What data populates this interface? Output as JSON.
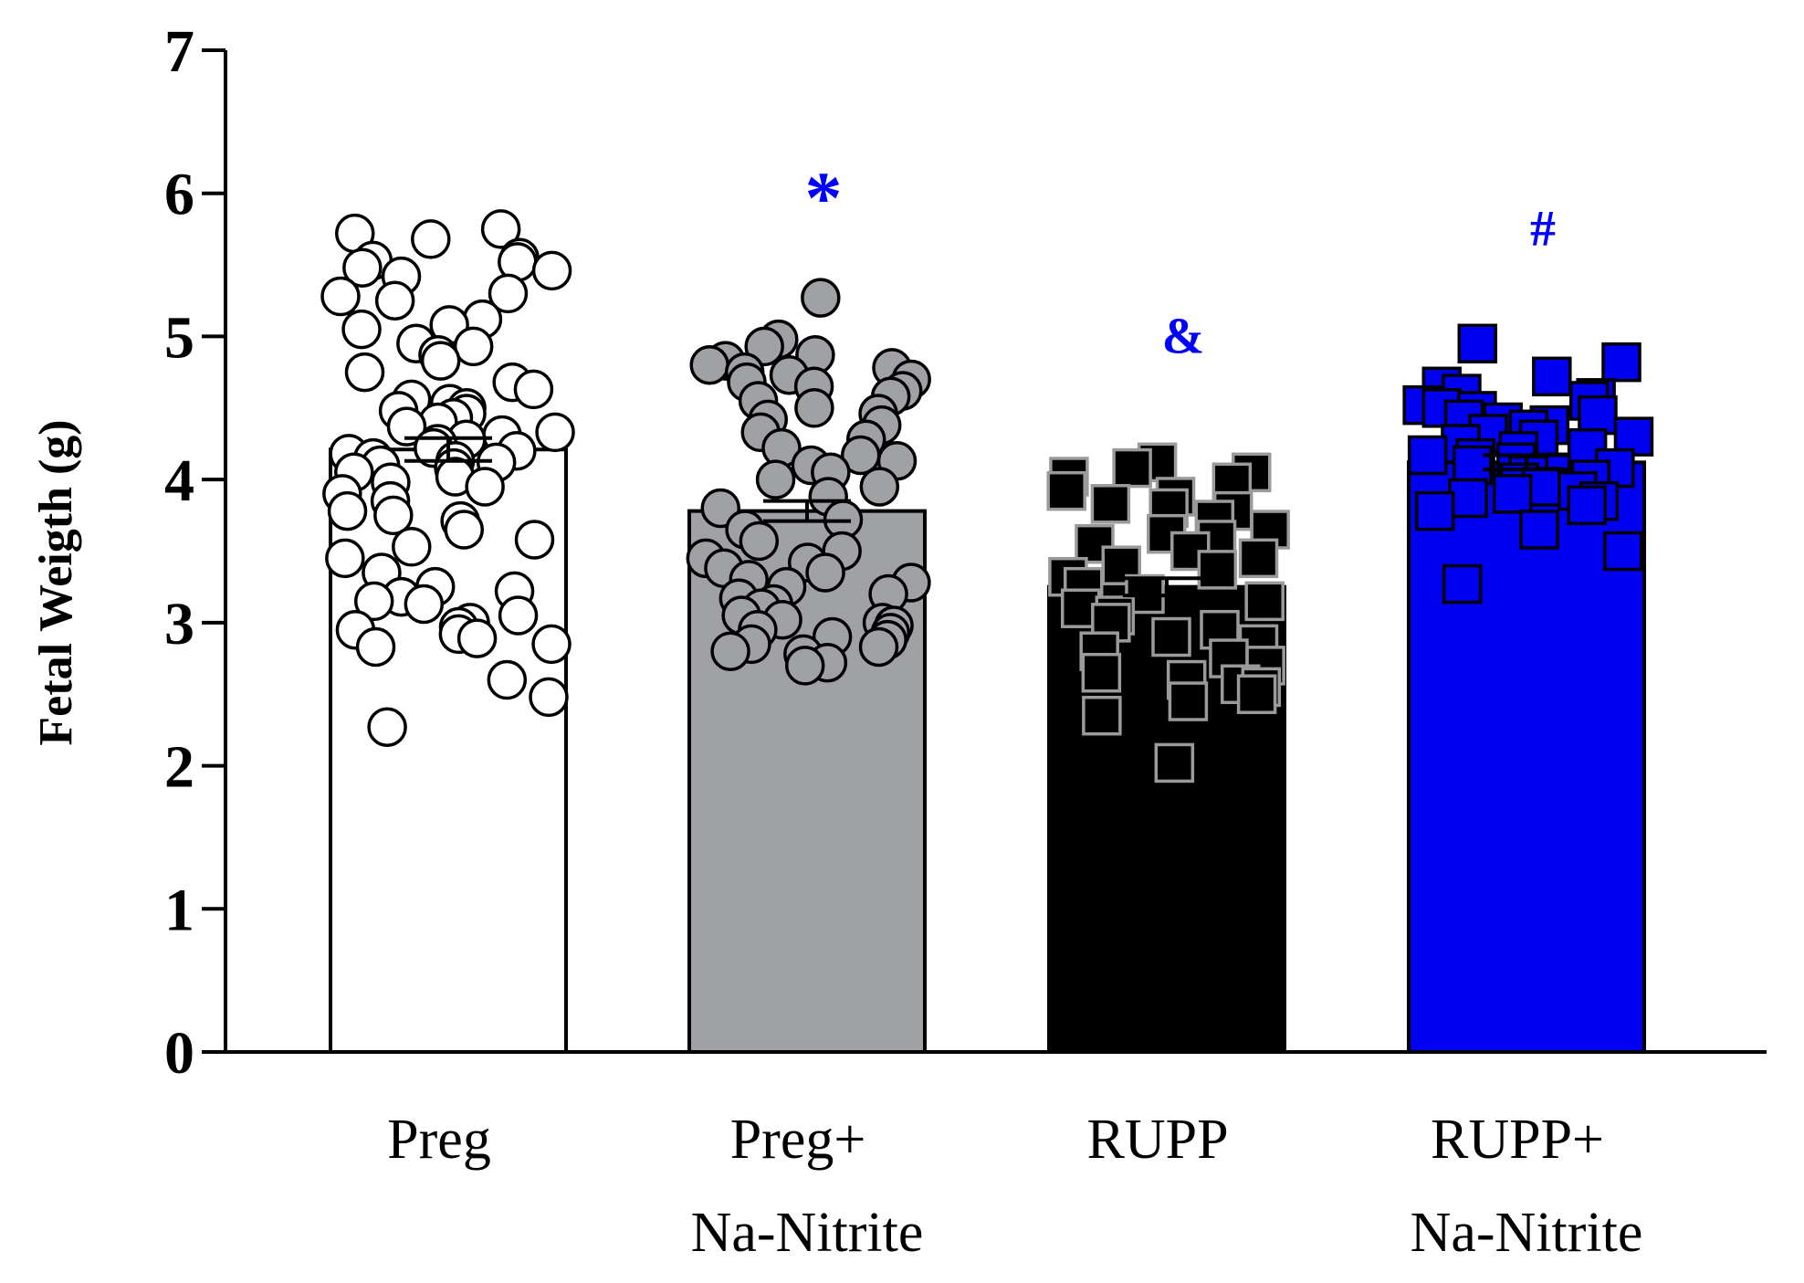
{
  "chart_data": {
    "type": "bar",
    "ylabel": "Fetal Weigth (g)",
    "xlabel": "",
    "ylim": [
      0,
      7
    ],
    "yticks": [
      "0",
      "1",
      "2",
      "3",
      "4",
      "5",
      "6",
      "7"
    ],
    "grid": false,
    "categories": [
      {
        "line1": "Preg",
        "line2": ""
      },
      {
        "line1": "Preg+",
        "line2": "Na-Nitrite"
      },
      {
        "line1": "RUPP",
        "line2": ""
      },
      {
        "line1": "RUPP+",
        "line2": "Na-Nitrite"
      }
    ],
    "values": [
      4.21,
      3.78,
      3.25,
      4.12
    ],
    "sem": [
      0.08,
      0.07,
      0.06,
      0.05
    ],
    "bar_fills": [
      "#ffffff",
      "#a0a1a5",
      "#000000",
      "#0000f0"
    ],
    "marker_shapes": [
      "circle",
      "circle",
      "square",
      "square"
    ],
    "marker_fills": [
      "#ffffff",
      "#a0a1a5",
      "#000000",
      "#0000f0"
    ],
    "marker_strokes": [
      "#000000",
      "#000000",
      "#9a9a9a",
      "#000000"
    ],
    "significance": [
      "",
      "*",
      "&",
      "#"
    ],
    "significance_values": [
      null,
      6.1,
      5.0,
      5.75
    ],
    "significance_color": "#0000ff",
    "points": [
      [
        5.75,
        5.72,
        5.68,
        5.55,
        5.53,
        5.52,
        5.48,
        5.46,
        5.42,
        5.3,
        5.28,
        5.25,
        5.12,
        5.08,
        5.05,
        4.95,
        4.93,
        4.87,
        4.83,
        4.75,
        4.68,
        4.63,
        4.56,
        4.53,
        4.5,
        4.48,
        4.46,
        4.43,
        4.4,
        4.37,
        4.33,
        4.31,
        4.28,
        4.25,
        4.22,
        4.2,
        4.18,
        4.15,
        4.13,
        4.12,
        4.1,
        4.08,
        4.05,
        4.02,
        3.98,
        3.95,
        3.9,
        3.85,
        3.78,
        3.75,
        3.71,
        3.65,
        3.58,
        3.53,
        3.45,
        3.35,
        3.25,
        3.22,
        3.18,
        3.15,
        3.13,
        3.05,
        3.0,
        2.97,
        2.95,
        2.92,
        2.89,
        2.85,
        2.83,
        2.6,
        2.48,
        2.27
      ],
      [
        5.27,
        4.98,
        4.93,
        4.87,
        4.83,
        4.8,
        4.78,
        4.75,
        4.73,
        4.7,
        4.68,
        4.65,
        4.62,
        4.58,
        4.55,
        4.5,
        4.46,
        4.42,
        4.38,
        4.33,
        4.28,
        4.22,
        4.17,
        4.13,
        4.1,
        4.05,
        4.0,
        3.95,
        3.88,
        3.8,
        3.72,
        3.65,
        3.57,
        3.5,
        3.45,
        3.42,
        3.38,
        3.35,
        3.3,
        3.28,
        3.25,
        3.2,
        3.17,
        3.13,
        3.1,
        3.05,
        3.02,
        3.0,
        2.98,
        2.95,
        2.93,
        2.9,
        2.88,
        2.85,
        2.83,
        2.8,
        2.78,
        2.72,
        2.7
      ],
      [
        4.12,
        4.08,
        4.05,
        4.02,
        3.98,
        3.92,
        3.88,
        3.83,
        3.8,
        3.78,
        3.72,
        3.65,
        3.62,
        3.58,
        3.55,
        3.5,
        3.45,
        3.4,
        3.37,
        3.32,
        3.25,
        3.2,
        3.15,
        3.1,
        3.05,
        3.0,
        2.95,
        2.9,
        2.85,
        2.8,
        2.75,
        2.7,
        2.65,
        2.6,
        2.57,
        2.55,
        2.5,
        2.45,
        2.35,
        2.02
      ],
      [
        4.95,
        4.82,
        4.72,
        4.65,
        4.6,
        4.57,
        4.55,
        4.52,
        4.5,
        4.48,
        4.45,
        4.42,
        4.4,
        4.38,
        4.35,
        4.32,
        4.3,
        4.28,
        4.25,
        4.22,
        4.2,
        4.17,
        4.15,
        4.12,
        4.1,
        4.08,
        4.05,
        4.03,
        4.0,
        3.98,
        3.95,
        3.92,
        3.9,
        3.87,
        3.85,
        3.82,
        3.78,
        3.65,
        3.5,
        3.27
      ]
    ]
  }
}
